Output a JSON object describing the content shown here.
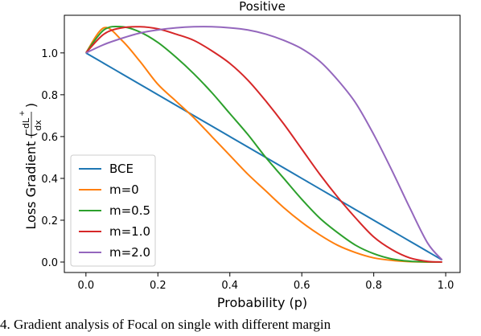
{
  "chart_data": {
    "type": "line",
    "title": "Positive",
    "xlabel": "Probability (p)",
    "ylabel": {
      "main": "Loss Gradient (",
      "fraction_num": "−dL",
      "fraction_sup": "+",
      "fraction_den": "dx",
      "close": ")"
    },
    "xlim": [
      -0.06,
      1.04
    ],
    "ylim": [
      -0.05,
      1.18
    ],
    "x_ticks": [
      {
        "value": 0.0,
        "label": "0.0"
      },
      {
        "value": 0.2,
        "label": "0.2"
      },
      {
        "value": 0.4,
        "label": "0.4"
      },
      {
        "value": 0.6,
        "label": "0.6"
      },
      {
        "value": 0.8,
        "label": "0.8"
      },
      {
        "value": 1.0,
        "label": "1.0"
      }
    ],
    "y_ticks": [
      {
        "value": 0.0,
        "label": "0.0"
      },
      {
        "value": 0.2,
        "label": "0.2"
      },
      {
        "value": 0.4,
        "label": "0.4"
      },
      {
        "value": 0.6,
        "label": "0.6"
      },
      {
        "value": 0.8,
        "label": "0.8"
      },
      {
        "value": 1.0,
        "label": "1.0"
      }
    ],
    "grid": false,
    "legend_position": "lower-left",
    "x": [
      0.0,
      0.05,
      0.1,
      0.15,
      0.2,
      0.25,
      0.3,
      0.35,
      0.4,
      0.45,
      0.5,
      0.55,
      0.6,
      0.65,
      0.7,
      0.75,
      0.8,
      0.85,
      0.9,
      0.95,
      0.99
    ],
    "series": [
      {
        "name": "BCE",
        "color": "#1f77b4",
        "values": [
          1.0,
          0.95,
          0.9,
          0.85,
          0.8,
          0.75,
          0.7,
          0.65,
          0.6,
          0.55,
          0.5,
          0.45,
          0.4,
          0.35,
          0.3,
          0.25,
          0.2,
          0.15,
          0.1,
          0.05,
          0.01
        ]
      },
      {
        "name": "m=0",
        "color": "#ff7f0e",
        "values": [
          1.0,
          1.12,
          1.06,
          0.96,
          0.85,
          0.77,
          0.69,
          0.6,
          0.51,
          0.42,
          0.34,
          0.26,
          0.19,
          0.13,
          0.08,
          0.045,
          0.02,
          0.008,
          0.002,
          0.0,
          0.0
        ]
      },
      {
        "name": "m=0.5",
        "color": "#2ca02c",
        "values": [
          1.0,
          1.11,
          1.125,
          1.1,
          1.05,
          0.98,
          0.9,
          0.81,
          0.71,
          0.61,
          0.5,
          0.4,
          0.3,
          0.21,
          0.14,
          0.08,
          0.04,
          0.015,
          0.004,
          0.001,
          0.0
        ]
      },
      {
        "name": "m=1.0",
        "color": "#d62728",
        "values": [
          1.0,
          1.09,
          1.12,
          1.125,
          1.115,
          1.09,
          1.06,
          1.01,
          0.95,
          0.87,
          0.77,
          0.66,
          0.54,
          0.42,
          0.31,
          0.21,
          0.12,
          0.06,
          0.02,
          0.003,
          0.0
        ]
      },
      {
        "name": "m=2.0",
        "color": "#9467bd",
        "values": [
          1.0,
          1.04,
          1.07,
          1.095,
          1.11,
          1.12,
          1.125,
          1.125,
          1.12,
          1.11,
          1.09,
          1.06,
          1.02,
          0.96,
          0.87,
          0.76,
          0.61,
          0.44,
          0.26,
          0.09,
          0.01
        ]
      }
    ]
  },
  "caption": "4.    Gradient analysis of Focal on single     with different  margin"
}
